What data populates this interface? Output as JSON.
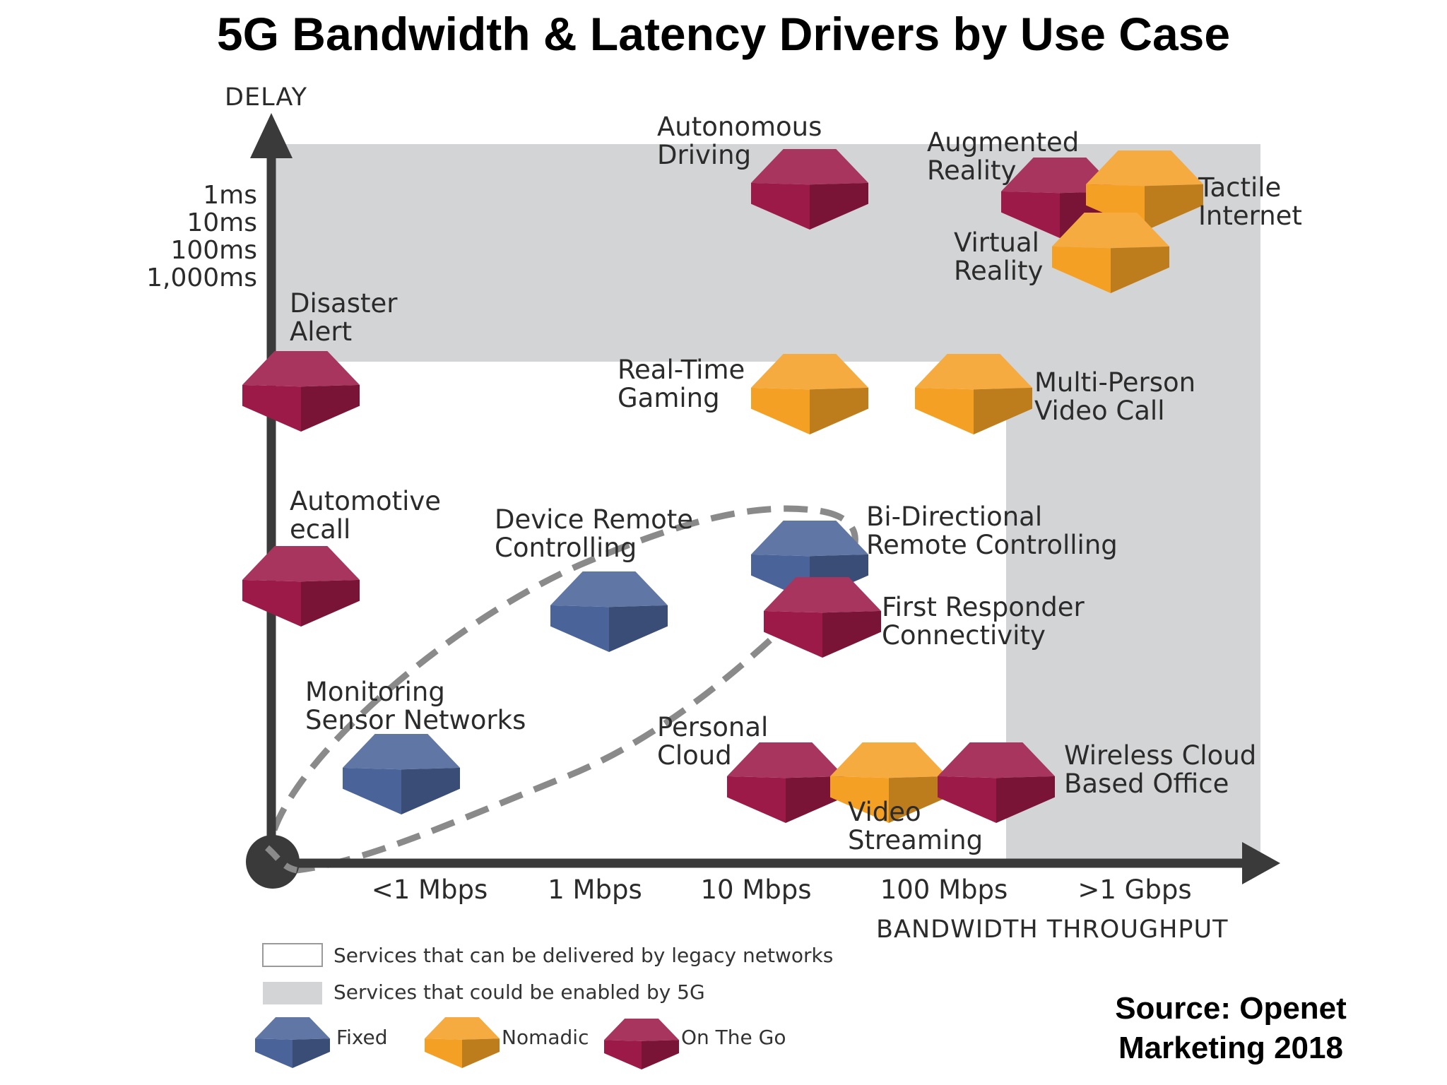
{
  "title": "5G Bandwidth & Latency Drivers by Use Case",
  "axes": {
    "y_name": "DELAY",
    "y_ticks": [
      "1ms",
      "10ms",
      "100ms",
      "1,000ms"
    ],
    "x_ticks": [
      "<1 Mbps",
      "1 Mbps",
      "10 Mbps",
      "100 Mbps",
      ">1 Gbps"
    ],
    "x_name": "BANDWIDTH  THROUGHPUT"
  },
  "colors": {
    "fixed": "#4a6399",
    "nomadic": "#f4a025",
    "on_the_go": "#9c1a47",
    "enabled_by_5g": "#d3d4d6",
    "axis": "#3a3a3a"
  },
  "use_cases": [
    {
      "id": "autonomous-driving",
      "lines": [
        "Autonomous",
        "Driving"
      ],
      "category": "on_the_go"
    },
    {
      "id": "augmented-reality",
      "lines": [
        "Augmented",
        "Reality"
      ],
      "category": "on_the_go"
    },
    {
      "id": "tactile-internet",
      "lines": [
        "Tactile",
        "Internet"
      ],
      "category": "nomadic"
    },
    {
      "id": "virtual-reality",
      "lines": [
        "Virtual",
        "Reality"
      ],
      "category": "nomadic"
    },
    {
      "id": "disaster-alert",
      "lines": [
        "Disaster",
        "Alert"
      ],
      "category": "on_the_go"
    },
    {
      "id": "real-time-gaming",
      "lines": [
        "Real-Time",
        "Gaming"
      ],
      "category": "nomadic"
    },
    {
      "id": "multi-person-video-call",
      "lines": [
        "Multi-Person",
        "Video Call"
      ],
      "category": "nomadic"
    },
    {
      "id": "automotive-ecall",
      "lines": [
        "Automotive",
        "ecall"
      ],
      "category": "on_the_go"
    },
    {
      "id": "device-remote-controlling",
      "lines": [
        "Device Remote",
        "Controlling"
      ],
      "category": "fixed"
    },
    {
      "id": "bi-directional-remote-controlling",
      "lines": [
        "Bi-Directional",
        "Remote Controlling"
      ],
      "category": "fixed"
    },
    {
      "id": "first-responder-connectivity",
      "lines": [
        "First Responder",
        "Connectivity"
      ],
      "category": "on_the_go"
    },
    {
      "id": "monitoring-sensor-networks",
      "lines": [
        "Monitoring",
        "Sensor Networks"
      ],
      "category": "fixed"
    },
    {
      "id": "personal-cloud",
      "lines": [
        "Personal",
        "Cloud"
      ],
      "category": "on_the_go"
    },
    {
      "id": "video-streaming",
      "lines": [
        "Video",
        "Streaming"
      ],
      "category": "nomadic"
    },
    {
      "id": "wireless-cloud-based-office",
      "lines": [
        "Wireless Cloud",
        "Based Office"
      ],
      "category": "on_the_go"
    }
  ],
  "legend": {
    "legacy": "Services that can be delivered by legacy networks",
    "enabled_5g": "Services that could be enabled by 5G",
    "fixed": "Fixed",
    "nomadic": "Nomadic",
    "on_the_go": "On The Go"
  },
  "source": [
    "Source: Openet",
    "Marketing 2018"
  ]
}
